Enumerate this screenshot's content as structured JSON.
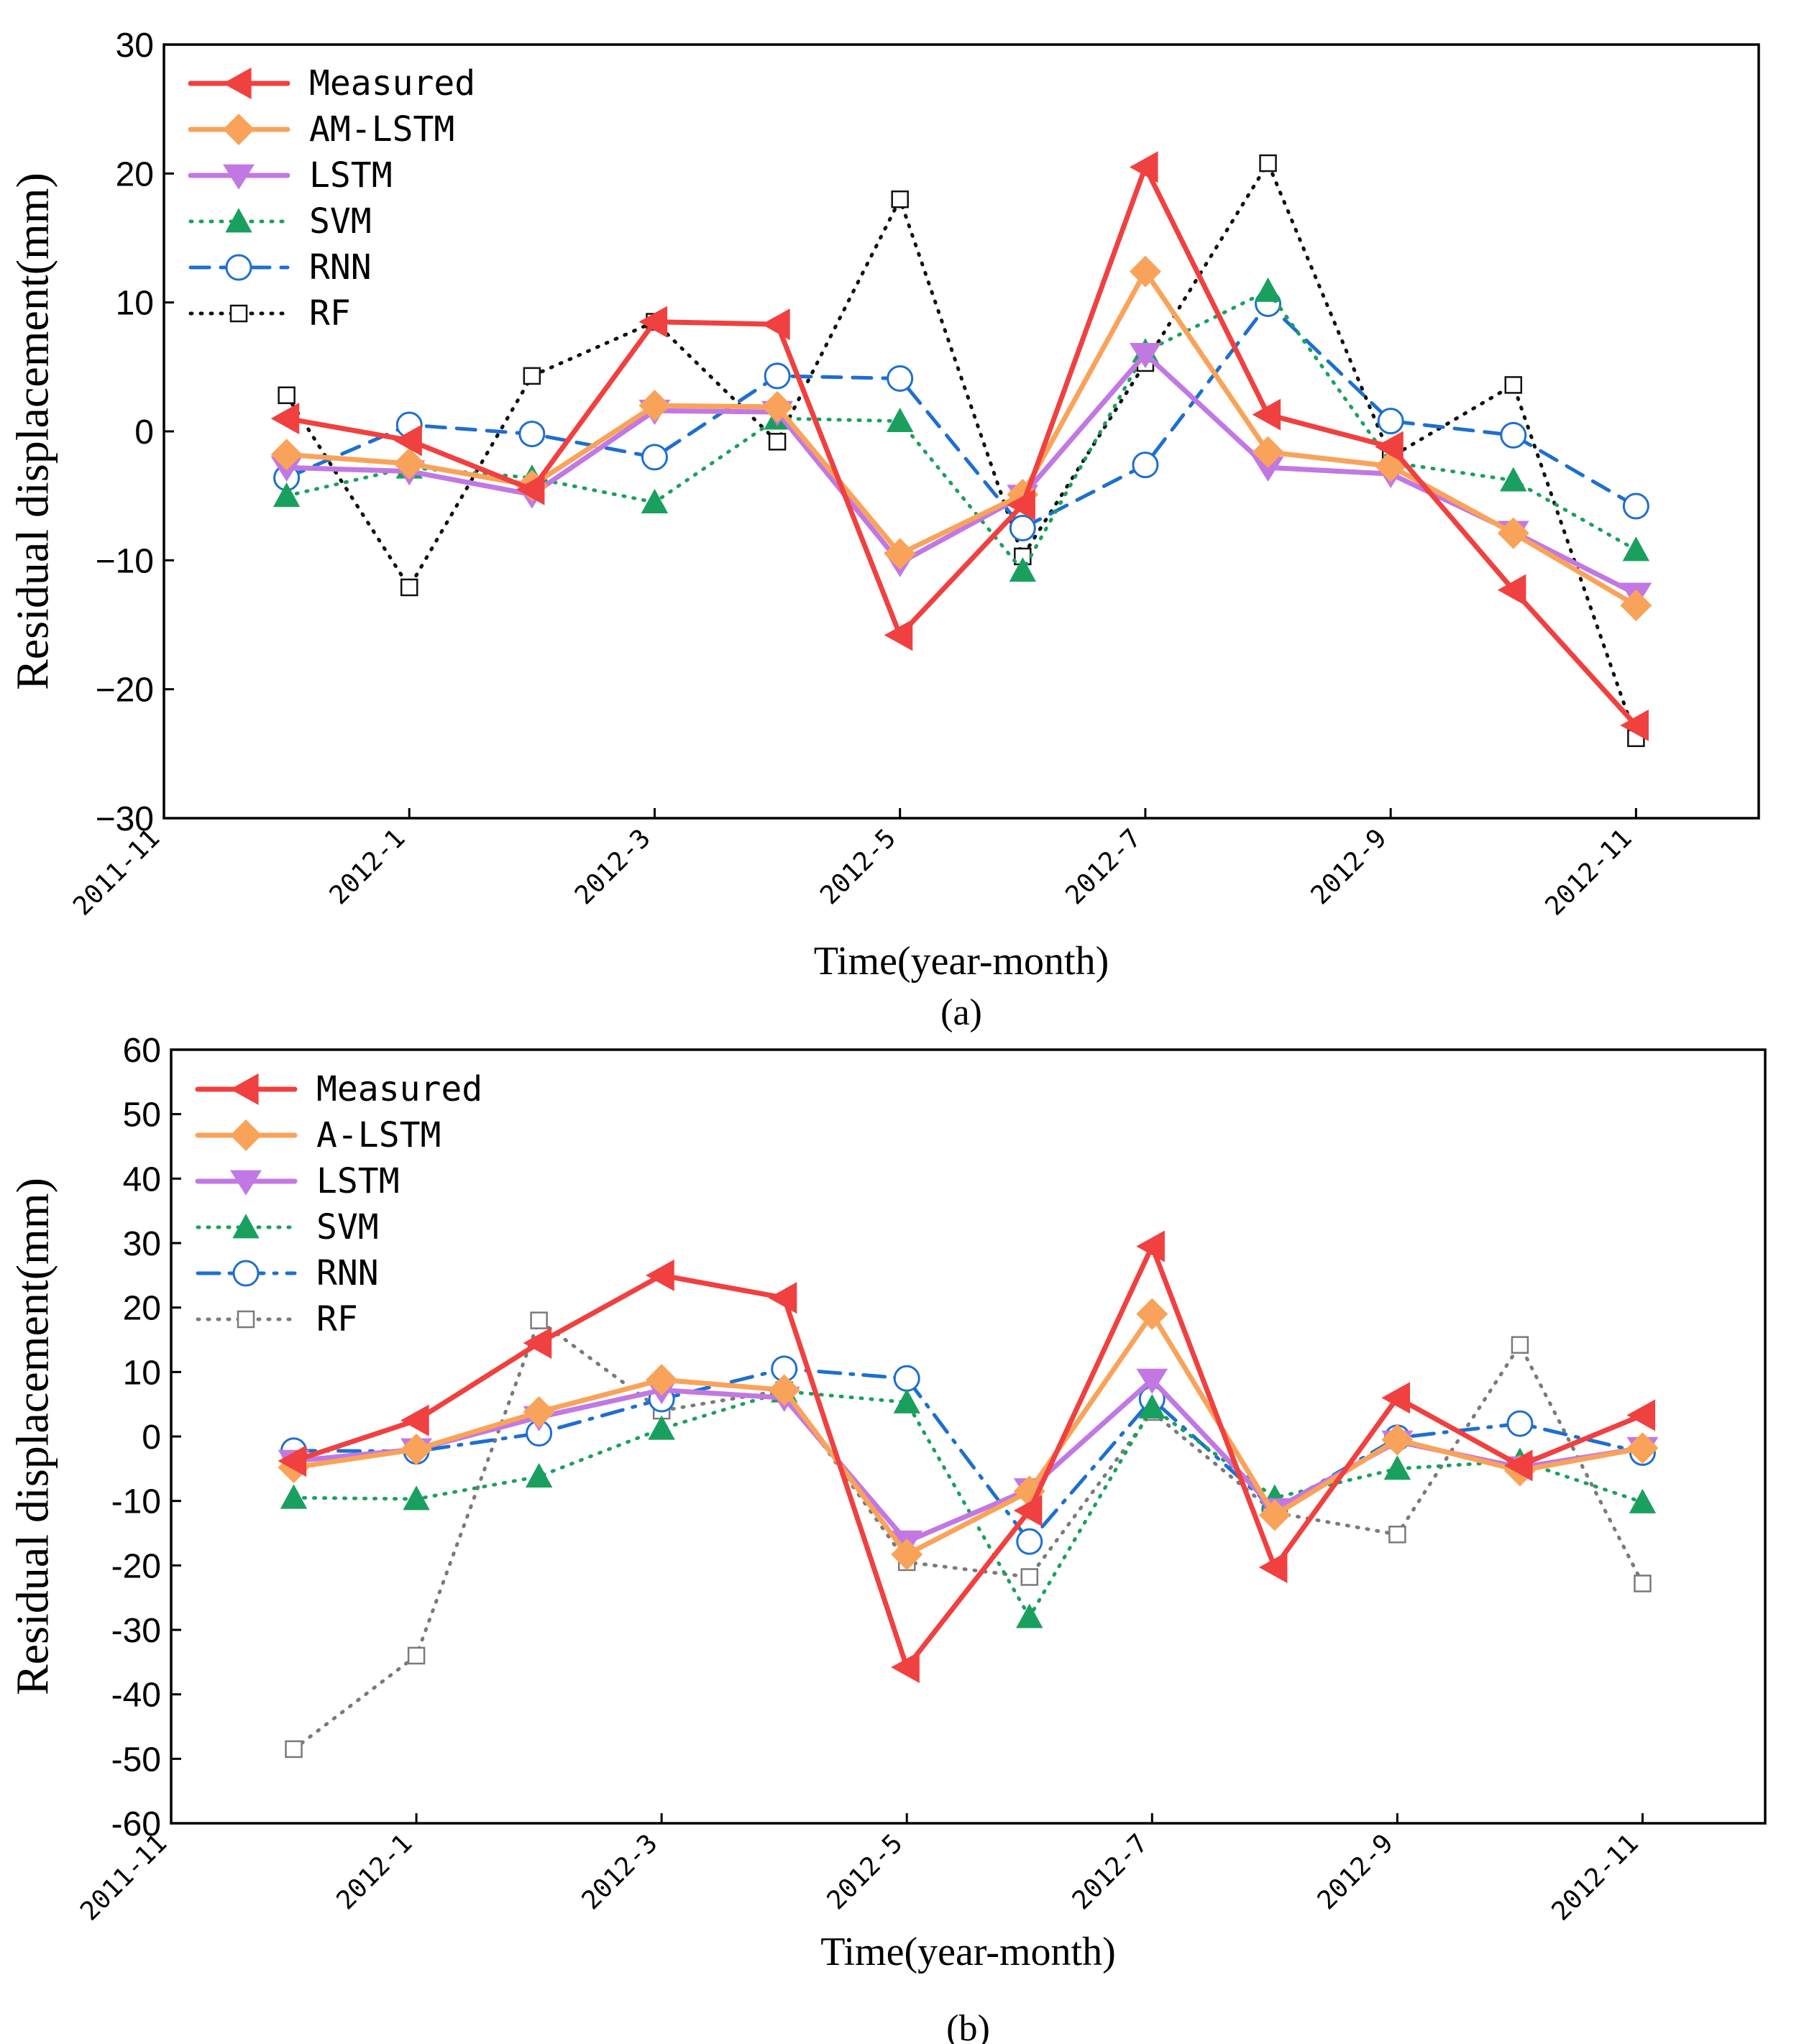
{
  "chart_data": [
    {
      "id": "a",
      "type": "line",
      "caption": "(a)",
      "xlabel": "Time(year-month)",
      "ylabel": "Residual displacement(mm)",
      "x_tick_labels": [
        "2011-11",
        "2012-1",
        "2012-3",
        "2012-5",
        "2012-7",
        "2012-9",
        "2012-11"
      ],
      "x_tick_positions": [
        0,
        2,
        4,
        6,
        8,
        10,
        12
      ],
      "xlim": [
        0,
        13
      ],
      "x": [
        1,
        2,
        3,
        4,
        5,
        6,
        7,
        8,
        9,
        10,
        11,
        12
      ],
      "ylim": [
        -30,
        30
      ],
      "yticks": [
        -30,
        -20,
        -10,
        0,
        10,
        20,
        30
      ],
      "ytick_labels": [
        "−30",
        "−20",
        "−10",
        "0",
        "10",
        "20",
        "30"
      ],
      "legend_position": "top-left",
      "grid": false,
      "series": [
        {
          "name": "Measured",
          "color": "#f0403f",
          "marker": "triangle-left",
          "dash": "solid",
          "values": [
            1.0,
            -0.7,
            -4.5,
            8.5,
            8.3,
            -15.8,
            -5.7,
            20.5,
            1.3,
            -1.2,
            -12.3,
            -22.8
          ]
        },
        {
          "name": "AM-LSTM",
          "color": "#f9a35a",
          "marker": "diamond",
          "dash": "solid",
          "values": [
            -1.8,
            -2.5,
            -4.2,
            2.0,
            1.9,
            -9.5,
            -4.9,
            12.4,
            -1.6,
            -2.7,
            -7.9,
            -13.5
          ]
        },
        {
          "name": "LSTM",
          "color": "#c278e3",
          "marker": "triangle-down",
          "dash": "solid",
          "values": [
            -2.8,
            -3.1,
            -4.9,
            1.6,
            1.5,
            -10.2,
            -5.0,
            6.0,
            -2.8,
            -3.3,
            -7.8,
            -12.6
          ]
        },
        {
          "name": "SVM",
          "color": "#1aa05e",
          "marker": "triangle-up",
          "dash": "dotted",
          "values": [
            -5.0,
            -2.8,
            -3.6,
            -5.5,
            1.0,
            0.8,
            -10.8,
            6.2,
            10.9,
            -2.4,
            -3.8,
            -9.2
          ]
        },
        {
          "name": "RNN",
          "color": "#1d6fd0",
          "marker": "circle-open",
          "dash": "dashed",
          "values": [
            -3.6,
            0.5,
            -0.2,
            -2.0,
            4.3,
            4.1,
            -7.5,
            -2.6,
            9.9,
            0.8,
            -0.3,
            -5.8
          ]
        },
        {
          "name": "RF",
          "color": "#111111",
          "marker": "square-open",
          "dash": "dotted",
          "values": [
            2.8,
            -12.1,
            4.3,
            8.5,
            -0.8,
            18.0,
            -9.7,
            5.3,
            20.8,
            -2.0,
            3.6,
            -23.8
          ]
        }
      ]
    },
    {
      "id": "b",
      "type": "line",
      "caption": "(b)",
      "xlabel": "Time(year-month)",
      "ylabel": "Residual displacement(mm)",
      "x_tick_labels": [
        "2011-11",
        "2012-1",
        "2012-3",
        "2012-5",
        "2012-7",
        "2012-9",
        "2012-11"
      ],
      "x_tick_positions": [
        0,
        2,
        4,
        6,
        8,
        10,
        12
      ],
      "xlim": [
        0,
        13
      ],
      "x": [
        1,
        2,
        3,
        4,
        5,
        6,
        7,
        8,
        9,
        10,
        11,
        12
      ],
      "ylim": [
        -60,
        60
      ],
      "yticks": [
        -60,
        -50,
        -40,
        -30,
        -20,
        -10,
        0,
        10,
        20,
        30,
        40,
        50,
        60
      ],
      "ytick_labels": [
        "-60",
        "-50",
        "-40",
        "-30",
        "-20",
        "-10",
        "0",
        "10",
        "20",
        "30",
        "40",
        "50",
        "60"
      ],
      "legend_position": "top-left",
      "grid": false,
      "series": [
        {
          "name": "Measured",
          "color": "#f0403f",
          "marker": "triangle-left",
          "dash": "solid",
          "values": [
            -3.8,
            2.5,
            14.5,
            25.0,
            21.5,
            -35.8,
            -11.5,
            29.5,
            -20.3,
            6.0,
            -4.5,
            3.3
          ]
        },
        {
          "name": "A-LSTM",
          "color": "#f9a35a",
          "marker": "diamond",
          "dash": "solid",
          "values": [
            -4.8,
            -2.0,
            3.8,
            8.8,
            7.2,
            -18.3,
            -8.5,
            19.0,
            -12.2,
            -0.5,
            -5.3,
            -1.8
          ]
        },
        {
          "name": "LSTM",
          "color": "#c278e3",
          "marker": "triangle-down",
          "dash": "solid",
          "values": [
            -3.8,
            -2.0,
            3.0,
            7.2,
            6.0,
            -16.3,
            -8.2,
            8.8,
            -11.3,
            -0.8,
            -4.8,
            -1.8
          ]
        },
        {
          "name": "SVM",
          "color": "#1aa05e",
          "marker": "triangle-up",
          "dash": "dotted",
          "values": [
            -9.5,
            -9.7,
            -6.2,
            1.2,
            7.0,
            5.3,
            -28.0,
            4.5,
            -9.5,
            -5.0,
            -3.8,
            -10.2
          ]
        },
        {
          "name": "RNN",
          "color": "#1d6fd0",
          "marker": "circle-open",
          "dash": "dashdot",
          "values": [
            -2.2,
            -2.3,
            0.5,
            5.8,
            10.5,
            9.0,
            -16.3,
            5.8,
            -11.3,
            -0.2,
            2.0,
            -2.5
          ]
        },
        {
          "name": "RF",
          "color": "#7a7a7a",
          "marker": "square-open",
          "dash": "dotted",
          "values": [
            -48.5,
            -34.0,
            18.0,
            4.0,
            7.2,
            -19.5,
            -21.8,
            3.8,
            -11.8,
            -15.2,
            14.2,
            -22.8
          ]
        }
      ]
    }
  ]
}
